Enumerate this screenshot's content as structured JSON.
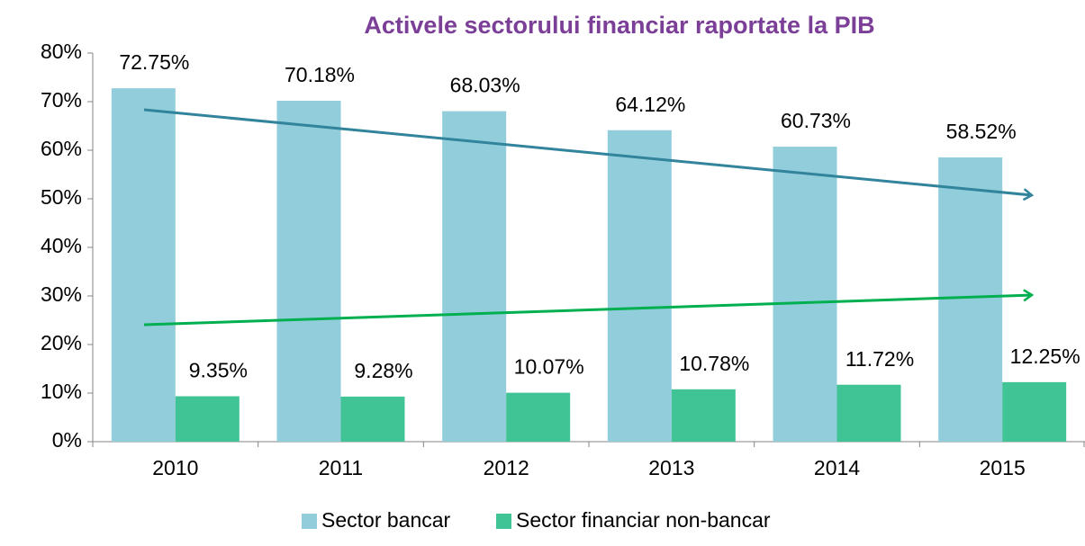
{
  "chart_data": {
    "type": "bar",
    "title": "Activele sectorului financiar raportate la PIB",
    "categories": [
      "2010",
      "2011",
      "2012",
      "2013",
      "2014",
      "2015"
    ],
    "series": [
      {
        "name": "Sector bancar",
        "color": "#92cddc",
        "values": [
          72.75,
          70.18,
          68.03,
          64.12,
          60.73,
          58.52
        ],
        "value_labels": [
          "72.75%",
          "70.18%",
          "68.03%",
          "64.12%",
          "60.73%",
          "58.52%"
        ]
      },
      {
        "name": "Sector financiar non-bancar",
        "color": "#40c496",
        "values": [
          9.35,
          9.28,
          10.07,
          10.78,
          11.72,
          12.25
        ],
        "value_labels": [
          "9.35%",
          "9.28%",
          "10.07%",
          "10.78%",
          "11.72%",
          "12.25%"
        ]
      }
    ],
    "ylim": [
      0,
      80
    ],
    "yticks": [
      {
        "value": 0,
        "label": "0%"
      },
      {
        "value": 10,
        "label": "10%"
      },
      {
        "value": 20,
        "label": "20%"
      },
      {
        "value": 30,
        "label": "30%"
      },
      {
        "value": 40,
        "label": "40%"
      },
      {
        "value": 50,
        "label": "50%"
      },
      {
        "value": 60,
        "label": "60%"
      },
      {
        "value": 70,
        "label": "70%"
      },
      {
        "value": 80,
        "label": "80%"
      }
    ],
    "legend": "bottom"
  }
}
